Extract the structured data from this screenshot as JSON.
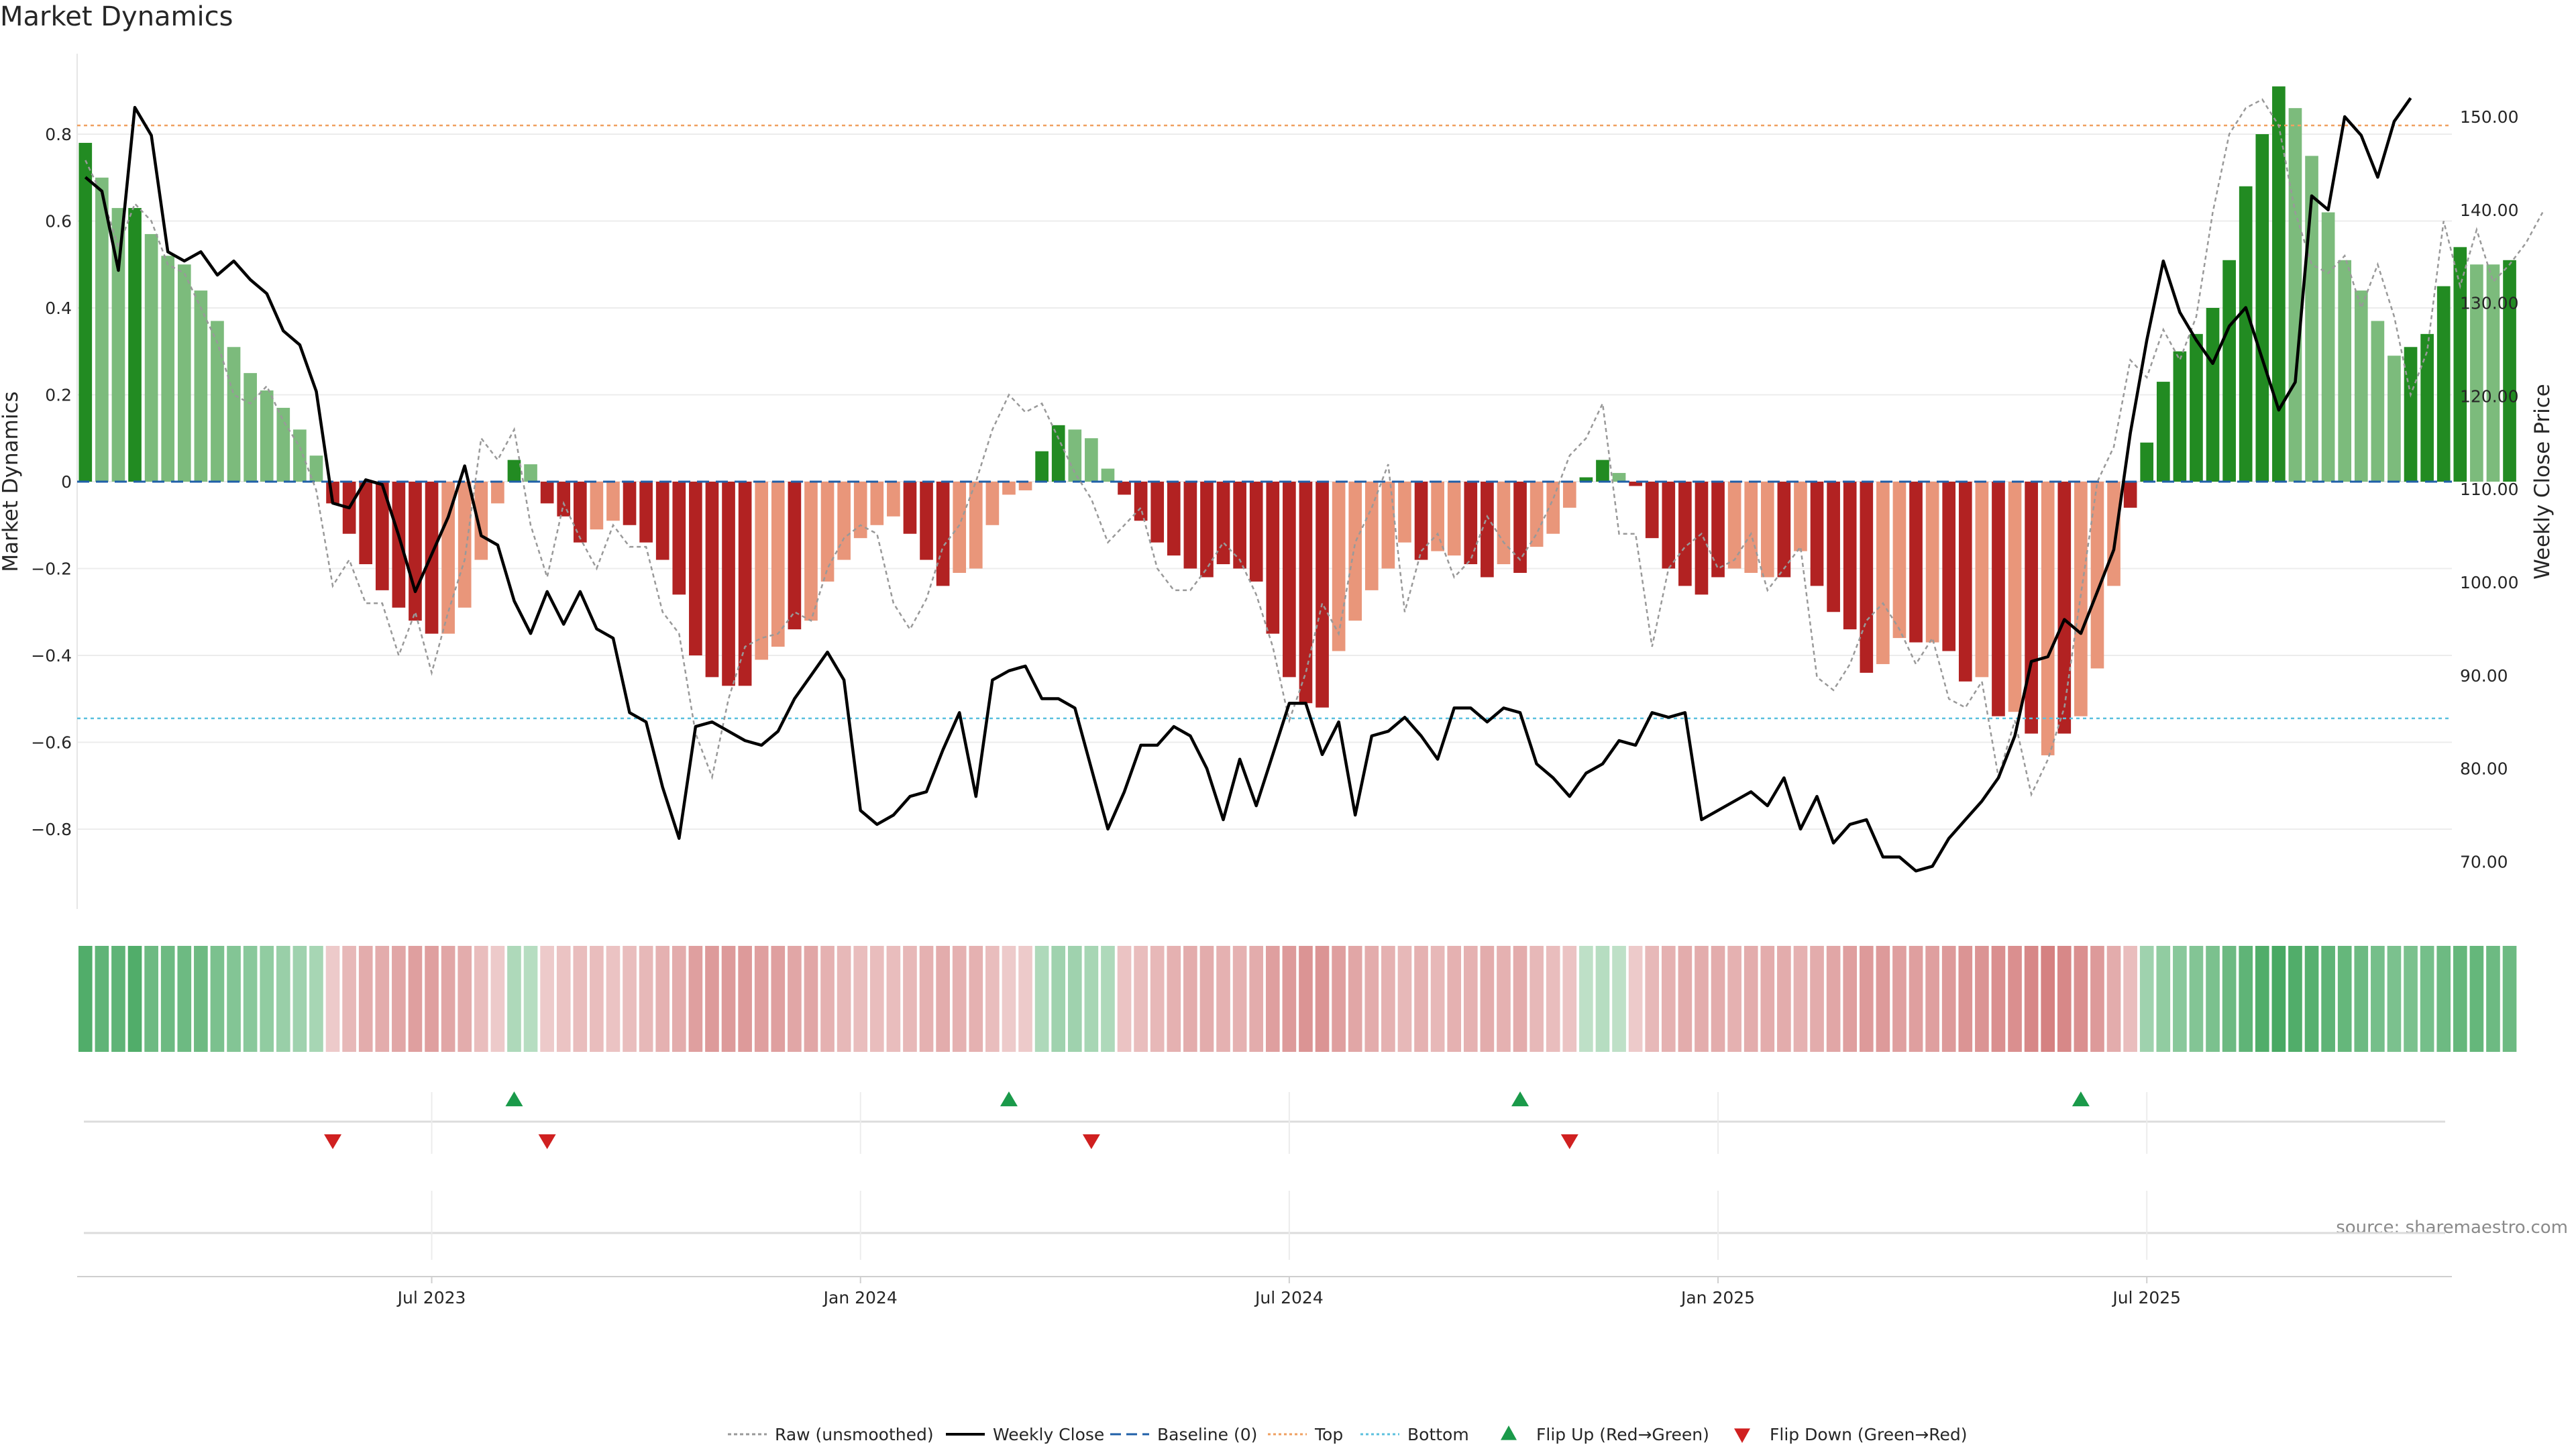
{
  "title": "Market Dynamics",
  "source": "source: sharemaestro.com",
  "colors": {
    "strong_green": "#228B22",
    "light_green": "#7CBB7C",
    "strong_red": "#B22222",
    "light_red": "#E9967A",
    "raw_line": "#999999",
    "close_line": "#000000",
    "baseline": "#1f5fa8",
    "top_line": "#f0a060",
    "bottom_line": "#5bc0de",
    "flip_up": "#1a9a4a",
    "flip_down": "#d02020"
  },
  "chart_data": {
    "type": "bar",
    "title": "Market Dynamics",
    "ylabel_left": "Market Dynamics",
    "ylabel_right": "Weekly Close Price",
    "ylim_left": [
      -0.98,
      0.98
    ],
    "ylim_right": [
      64,
      156
    ],
    "left_ticks": [
      "0.8",
      "0.6",
      "0.4",
      "0.2",
      "0",
      "−0.2",
      "−0.4",
      "−0.6",
      "−0.8"
    ],
    "left_tick_values": [
      0.8,
      0.6,
      0.4,
      0.2,
      0,
      -0.2,
      -0.4,
      -0.6,
      -0.8
    ],
    "right_ticks": [
      "150.00",
      "140.00",
      "130.00",
      "120.00",
      "110.00",
      "100.00",
      "90.00",
      "80.00",
      "70.00"
    ],
    "right_tick_values": [
      150,
      140,
      130,
      120,
      110,
      100,
      90,
      80,
      70
    ],
    "x_ticks": [
      "Jul 2023",
      "Jan 2024",
      "Jul 2024",
      "Jan 2025",
      "Jul 2025"
    ],
    "x_tick_weeks": [
      21,
      47,
      73,
      99,
      125
    ],
    "start_date": "2023-02-06",
    "weeks": 144,
    "top_level": 0.82,
    "bottom_level": -0.545,
    "baseline": 0,
    "dynamics": [
      0.78,
      0.7,
      0.63,
      0.63,
      0.57,
      0.52,
      0.5,
      0.44,
      0.37,
      0.31,
      0.25,
      0.21,
      0.17,
      0.12,
      0.06,
      -0.05,
      -0.12,
      -0.19,
      -0.25,
      -0.29,
      -0.32,
      -0.35,
      -0.35,
      -0.29,
      -0.18,
      -0.05,
      0.05,
      0.04,
      -0.05,
      -0.08,
      -0.14,
      -0.11,
      -0.09,
      -0.1,
      -0.14,
      -0.18,
      -0.26,
      -0.4,
      -0.45,
      -0.47,
      -0.47,
      -0.41,
      -0.38,
      -0.34,
      -0.32,
      -0.23,
      -0.18,
      -0.13,
      -0.1,
      -0.08,
      -0.12,
      -0.18,
      -0.24,
      -0.21,
      -0.2,
      -0.1,
      -0.03,
      -0.02,
      0.07,
      0.13,
      0.12,
      0.1,
      0.03,
      -0.03,
      -0.09,
      -0.14,
      -0.17,
      -0.2,
      -0.22,
      -0.19,
      -0.2,
      -0.23,
      -0.35,
      -0.45,
      -0.51,
      -0.52,
      -0.39,
      -0.32,
      -0.25,
      -0.2,
      -0.14,
      -0.18,
      -0.16,
      -0.17,
      -0.19,
      -0.22,
      -0.19,
      -0.21,
      -0.15,
      -0.12,
      -0.06,
      0.01,
      0.05,
      0.02,
      -0.01,
      -0.13,
      -0.2,
      -0.24,
      -0.26,
      -0.22,
      -0.2,
      -0.21,
      -0.22,
      -0.22,
      -0.16,
      -0.24,
      -0.3,
      -0.34,
      -0.44,
      -0.42,
      -0.36,
      -0.37,
      -0.37,
      -0.39,
      -0.46,
      -0.45,
      -0.54,
      -0.53,
      -0.58,
      -0.63,
      -0.58,
      -0.54,
      -0.43,
      -0.24,
      -0.06,
      0.09,
      0.23,
      0.3,
      0.34,
      0.4,
      0.51,
      0.68,
      0.8,
      0.91,
      0.86,
      0.75,
      0.62,
      0.51,
      0.44,
      0.37,
      0.29,
      0.31,
      0.34,
      0.45,
      0.54,
      0.5,
      0.5,
      0.51
    ],
    "bar_shade": [
      "S",
      "L",
      "L",
      "S",
      "L",
      "L",
      "L",
      "L",
      "L",
      "L",
      "L",
      "L",
      "L",
      "L",
      "L",
      "S",
      "S",
      "S",
      "S",
      "S",
      "S",
      "S",
      "L",
      "L",
      "L",
      "L",
      "S",
      "L",
      "S",
      "S",
      "S",
      "L",
      "L",
      "S",
      "S",
      "S",
      "S",
      "S",
      "S",
      "S",
      "S",
      "L",
      "L",
      "S",
      "L",
      "L",
      "L",
      "L",
      "L",
      "L",
      "S",
      "S",
      "S",
      "L",
      "L",
      "L",
      "L",
      "L",
      "S",
      "S",
      "L",
      "L",
      "L",
      "S",
      "S",
      "S",
      "S",
      "S",
      "S",
      "S",
      "S",
      "S",
      "S",
      "S",
      "S",
      "S",
      "L",
      "L",
      "L",
      "L",
      "L",
      "S",
      "L",
      "L",
      "S",
      "S",
      "L",
      "S",
      "L",
      "L",
      "L",
      "S",
      "S",
      "L",
      "S",
      "S",
      "S",
      "S",
      "S",
      "S",
      "L",
      "L",
      "L",
      "S",
      "L",
      "S",
      "S",
      "S",
      "S",
      "L",
      "L",
      "S",
      "L",
      "S",
      "S",
      "L",
      "S",
      "L",
      "S",
      "L",
      "S",
      "L",
      "L",
      "L",
      "S",
      "S",
      "S",
      "S",
      "S",
      "S",
      "S",
      "S",
      "S",
      "S",
      "L",
      "L",
      "L",
      "L",
      "L",
      "L",
      "L",
      "S",
      "S",
      "S",
      "S",
      "L",
      "L",
      "S"
    ],
    "raw": [
      0.74,
      0.66,
      0.54,
      0.64,
      0.6,
      0.5,
      0.48,
      0.4,
      0.32,
      0.2,
      0.18,
      0.22,
      0.14,
      0.08,
      -0.02,
      -0.24,
      -0.18,
      -0.28,
      -0.28,
      -0.4,
      -0.3,
      -0.44,
      -0.3,
      -0.18,
      0.1,
      0.05,
      0.12,
      -0.1,
      -0.22,
      -0.05,
      -0.13,
      -0.2,
      -0.1,
      -0.15,
      -0.15,
      -0.3,
      -0.35,
      -0.58,
      -0.68,
      -0.5,
      -0.38,
      -0.36,
      -0.35,
      -0.3,
      -0.32,
      -0.2,
      -0.13,
      -0.1,
      -0.12,
      -0.28,
      -0.34,
      -0.27,
      -0.15,
      -0.1,
      0.0,
      0.12,
      0.2,
      0.16,
      0.18,
      0.1,
      0.02,
      -0.04,
      -0.14,
      -0.1,
      -0.06,
      -0.2,
      -0.25,
      -0.25,
      -0.2,
      -0.14,
      -0.18,
      -0.26,
      -0.38,
      -0.55,
      -0.44,
      -0.28,
      -0.35,
      -0.14,
      -0.06,
      0.04,
      -0.3,
      -0.16,
      -0.12,
      -0.22,
      -0.18,
      -0.08,
      -0.14,
      -0.18,
      -0.12,
      -0.04,
      0.06,
      0.1,
      0.18,
      -0.12,
      -0.12,
      -0.38,
      -0.2,
      -0.15,
      -0.12,
      -0.2,
      -0.18,
      -0.12,
      -0.25,
      -0.2,
      -0.15,
      -0.45,
      -0.48,
      -0.42,
      -0.32,
      -0.28,
      -0.34,
      -0.42,
      -0.36,
      -0.5,
      -0.52,
      -0.46,
      -0.68,
      -0.55,
      -0.72,
      -0.64,
      -0.52,
      -0.26,
      0.0,
      0.08,
      0.28,
      0.24,
      0.35,
      0.28,
      0.38,
      0.62,
      0.8,
      0.86,
      0.88,
      0.82,
      0.62,
      0.5,
      0.48,
      0.52,
      0.4,
      0.5,
      0.38,
      0.2,
      0.3,
      0.6,
      0.45,
      0.58,
      0.46,
      0.5,
      0.55,
      0.62
    ],
    "close": [
      143.5,
      142,
      133.5,
      151,
      148,
      135.5,
      134.5,
      135.5,
      133,
      134.5,
      132.5,
      131,
      127,
      125.5,
      120.5,
      108.5,
      108,
      111,
      110.5,
      105,
      99,
      103,
      107,
      112.5,
      105,
      104,
      98,
      94.5,
      99,
      95.5,
      99,
      95,
      94,
      86,
      85,
      78,
      72.5,
      84.5,
      85,
      84,
      83,
      82.5,
      84,
      87.5,
      90,
      92.5,
      89.5,
      75.5,
      74,
      75,
      77,
      77.5,
      82,
      86,
      77,
      89.5,
      90.5,
      91,
      87.5,
      87.5,
      86.5,
      80,
      73.5,
      77.5,
      82.5,
      82.5,
      84.5,
      83.5,
      80,
      74.5,
      81,
      76,
      81.5,
      87,
      87,
      81.5,
      85,
      75,
      83.5,
      84,
      85.5,
      83.5,
      81,
      86.5,
      86.5,
      85,
      86.5,
      86,
      80.5,
      79,
      77,
      79.5,
      80.5,
      83,
      82.5,
      86,
      85.5,
      86,
      74.5,
      75.5,
      76.5,
      77.5,
      76,
      79,
      73.5,
      77,
      72,
      74,
      74.5,
      70.5,
      70.5,
      69,
      69.5,
      72.5,
      74.5,
      76.5,
      79,
      83.5,
      91.5,
      92,
      96,
      94.5,
      99,
      103.5,
      116,
      126,
      134.5,
      129,
      126,
      123.5,
      127.5,
      129.5,
      124,
      118.5,
      121.5,
      141.5,
      140,
      150,
      148,
      143.5,
      149.5,
      152
    ],
    "flip_up_weeks": [
      26,
      56,
      87,
      121
    ],
    "flip_down_weeks": [
      15,
      28,
      61,
      90
    ],
    "heat_intensity": [
      0.95,
      0.85,
      0.85,
      0.95,
      0.75,
      0.75,
      0.75,
      0.75,
      0.65,
      0.6,
      0.55,
      0.5,
      0.45,
      0.4,
      0.35,
      0.2,
      0.35,
      0.45,
      0.45,
      0.5,
      0.55,
      0.55,
      0.5,
      0.45,
      0.3,
      0.2,
      0.3,
      0.25,
      0.2,
      0.25,
      0.3,
      0.3,
      0.25,
      0.3,
      0.35,
      0.4,
      0.45,
      0.55,
      0.6,
      0.6,
      0.6,
      0.55,
      0.55,
      0.5,
      0.5,
      0.4,
      0.35,
      0.3,
      0.3,
      0.3,
      0.35,
      0.4,
      0.45,
      0.4,
      0.4,
      0.3,
      0.2,
      0.2,
      0.3,
      0.4,
      0.4,
      0.35,
      0.3,
      0.25,
      0.3,
      0.35,
      0.4,
      0.45,
      0.45,
      0.4,
      0.4,
      0.45,
      0.55,
      0.6,
      0.65,
      0.65,
      0.55,
      0.5,
      0.45,
      0.4,
      0.35,
      0.4,
      0.35,
      0.4,
      0.4,
      0.45,
      0.4,
      0.45,
      0.35,
      0.3,
      0.25,
      0.2,
      0.25,
      0.2,
      0.2,
      0.35,
      0.4,
      0.45,
      0.45,
      0.45,
      0.4,
      0.45,
      0.45,
      0.45,
      0.4,
      0.45,
      0.5,
      0.55,
      0.6,
      0.6,
      0.55,
      0.55,
      0.55,
      0.6,
      0.65,
      0.65,
      0.7,
      0.7,
      0.75,
      0.8,
      0.75,
      0.7,
      0.6,
      0.45,
      0.3,
      0.4,
      0.5,
      0.55,
      0.6,
      0.65,
      0.75,
      0.85,
      0.95,
      1.0,
      0.95,
      0.9,
      0.85,
      0.8,
      0.75,
      0.7,
      0.65,
      0.65,
      0.7,
      0.75,
      0.8,
      0.8,
      0.75,
      0.75
    ]
  },
  "legend": [
    {
      "label": "Raw (unsmoothed)",
      "icon": "dotted-line-icon"
    },
    {
      "label": "Weekly Close",
      "icon": "solid-line-icon"
    },
    {
      "label": "Baseline (0)",
      "icon": "dashed-line-icon"
    },
    {
      "label": "Top",
      "icon": "dotted-orange-line-icon"
    },
    {
      "label": "Bottom",
      "icon": "dotted-cyan-line-icon"
    },
    {
      "label": "Flip Up (Red→Green)",
      "icon": "triangle-up-icon"
    },
    {
      "label": "Flip Down (Green→Red)",
      "icon": "triangle-down-icon"
    }
  ]
}
